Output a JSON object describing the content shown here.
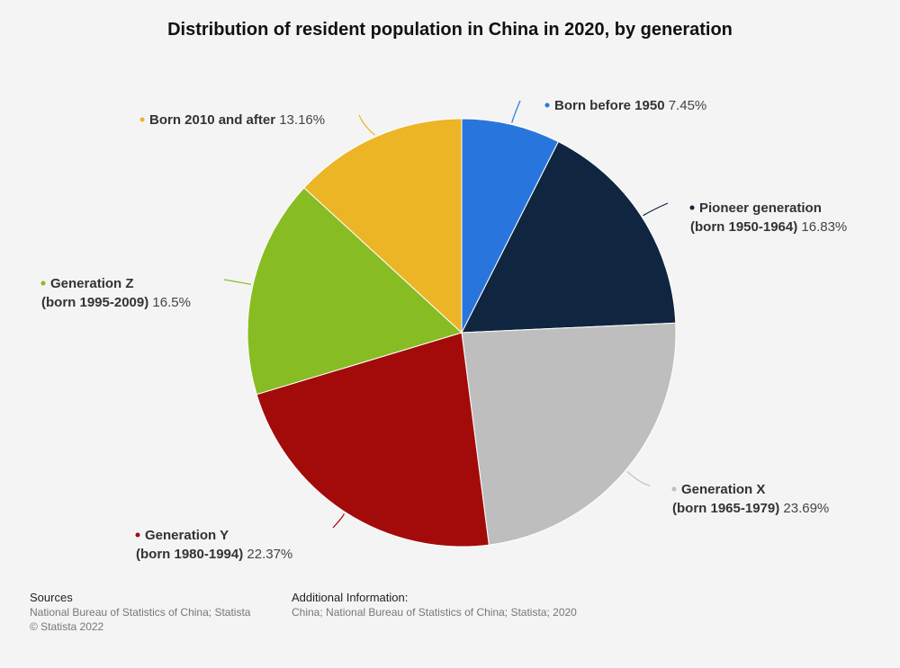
{
  "chart_data": {
    "type": "pie",
    "title": "Distribution of resident population in China in 2020, by generation",
    "slices": [
      {
        "label": "Born before 1950",
        "label_lines": [
          "Born before 1950"
        ],
        "value": 7.45,
        "value_text": "7.45%",
        "color": "#2876dd"
      },
      {
        "label": "Pioneer generation (born 1950-1964)",
        "label_lines": [
          "Pioneer generation",
          "(born 1950-1964)"
        ],
        "value": 16.83,
        "value_text": "16.83%",
        "color": "#10253f"
      },
      {
        "label": "Generation X (born 1965-1979)",
        "label_lines": [
          "Generation X",
          "(born 1965-1979)"
        ],
        "value": 23.69,
        "value_text": "23.69%",
        "color": "#bebebe"
      },
      {
        "label": "Generation Y (born 1980-1994)",
        "label_lines": [
          "Generation Y",
          "(born 1980-1994)"
        ],
        "value": 22.37,
        "value_text": "22.37%",
        "color": "#a30b0b"
      },
      {
        "label": "Generation Z (born 1995-2009)",
        "label_lines": [
          "Generation Z",
          "(born 1995-2009)"
        ],
        "value": 16.5,
        "value_text": "16.5%",
        "color": "#88bc23"
      },
      {
        "label": "Born 2010 and after",
        "label_lines": [
          "Born 2010 and after"
        ],
        "value": 13.16,
        "value_text": "13.16%",
        "color": "#ecb526"
      }
    ]
  },
  "footer": {
    "sources_heading": "Sources",
    "sources_line1": "National Bureau of Statistics of China; Statista",
    "sources_line2": "© Statista 2022",
    "info_heading": "Additional Information:",
    "info_line1": "China; National Bureau of Statistics of China; Statista; 2020"
  }
}
